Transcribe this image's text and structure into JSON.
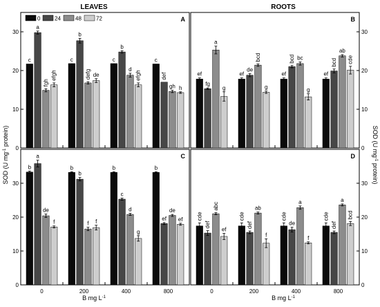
{
  "header": {
    "left": "LEAVES",
    "right": "ROOTS"
  },
  "axis_text": {
    "ylabel_left": "SOD (U mg",
    "ylabel_right": "SOD (U mg",
    "ylabel_sup": "-1",
    "ylabel_tail": " protein)",
    "xlabel_main": "B mg L",
    "xlabel_sup": "-1"
  },
  "legend": {
    "entries": [
      "0",
      "24",
      "48",
      "72"
    ]
  },
  "colors": {
    "series": [
      "#0a0a0a",
      "#474747",
      "#8c8c8c",
      "#cdcdcd"
    ],
    "frame": "#000000"
  },
  "chart_data": [
    {
      "panel": "A",
      "type": "bar",
      "ylim": [
        0,
        35
      ],
      "yticks": [
        0,
        10,
        20,
        30
      ],
      "categories": [
        "0",
        "200",
        "400",
        "800"
      ],
      "tick_labels_visible": false,
      "series": [
        {
          "name": "0",
          "values": [
            21.7,
            21.8,
            21.8,
            21.7
          ],
          "errors": [
            0,
            0,
            0,
            0
          ],
          "letters": [
            "c",
            "c",
            "c",
            "c"
          ]
        },
        {
          "name": "24",
          "values": [
            29.8,
            27.7,
            24.8,
            17.0
          ],
          "errors": [
            0.4,
            0.6,
            0.3,
            0
          ],
          "letters": [
            "a",
            "b",
            "b",
            "def"
          ]
        },
        {
          "name": "48",
          "values": [
            14.9,
            16.8,
            18.8,
            14.6
          ],
          "errors": [
            0.4,
            0.3,
            0.5,
            0.3
          ],
          "letters": [
            "fgh",
            "defg",
            "d",
            "gh"
          ]
        },
        {
          "name": "72",
          "values": [
            16.3,
            17.4,
            16.3,
            14.3
          ],
          "errors": [
            0.5,
            0.5,
            0.5,
            0.2
          ],
          "letters": [
            "efgh",
            "de",
            "efgh",
            "h"
          ]
        }
      ]
    },
    {
      "panel": "B",
      "type": "bar",
      "ylim": [
        0,
        35
      ],
      "yticks": [
        0,
        10,
        20,
        30
      ],
      "categories": [
        "0",
        "200",
        "400",
        "800"
      ],
      "tick_labels_visible": false,
      "series": [
        {
          "name": "0",
          "values": [
            17.8,
            17.8,
            17.8,
            17.8
          ],
          "errors": [
            0.3,
            0.3,
            0.3,
            0.3
          ],
          "letters": [
            "ef",
            "ef",
            "ef",
            "ef"
          ]
        },
        {
          "name": "24",
          "values": [
            15.3,
            18.8,
            21.0,
            19.9
          ],
          "errors": [
            0.2,
            0.4,
            0.3,
            0.5
          ],
          "letters": [
            "fg",
            "de",
            "bcd",
            "bcd"
          ]
        },
        {
          "name": "48",
          "values": [
            25.3,
            21.4,
            21.8,
            23.8
          ],
          "errors": [
            1.0,
            0.3,
            0.4,
            0.3
          ],
          "letters": [
            "a",
            "bcd",
            "bc",
            "ab"
          ]
        },
        {
          "name": "72",
          "values": [
            13.3,
            14.4,
            13.2,
            20.1
          ],
          "errors": [
            1.2,
            0.3,
            0.8,
            1.0
          ],
          "letters": [
            "g",
            "g",
            "g",
            "cde"
          ]
        }
      ]
    },
    {
      "panel": "C",
      "type": "bar",
      "ylim": [
        0,
        40
      ],
      "yticks": [
        0,
        10,
        20,
        30
      ],
      "categories": [
        "0",
        "200",
        "400",
        "800"
      ],
      "tick_labels_visible": true,
      "series": [
        {
          "name": "0",
          "values": [
            33.3,
            33.2,
            33.2,
            33.2
          ],
          "errors": [
            0.3,
            0.2,
            0.2,
            0.2
          ],
          "letters": [
            "b",
            "b",
            "b",
            "b"
          ]
        },
        {
          "name": "24",
          "values": [
            35.8,
            31.2,
            25.3,
            18.1
          ],
          "errors": [
            1.0,
            0.5,
            0.3,
            0.3
          ],
          "letters": [
            "a",
            "b",
            "c",
            "ef"
          ]
        },
        {
          "name": "48",
          "values": [
            20.4,
            16.5,
            20.8,
            20.5
          ],
          "errors": [
            0.5,
            0.5,
            0.3,
            0.3
          ],
          "letters": [
            "de",
            "f",
            "d",
            "de"
          ]
        },
        {
          "name": "72",
          "values": [
            17.1,
            16.9,
            13.7,
            17.9
          ],
          "errors": [
            0.3,
            0.7,
            0.8,
            0.3
          ],
          "letters": [
            "f",
            "f",
            "g",
            "ef"
          ]
        }
      ]
    },
    {
      "panel": "D",
      "type": "bar",
      "ylim": [
        0,
        40
      ],
      "yticks": [
        0,
        10,
        20,
        30
      ],
      "categories": [
        "0",
        "200",
        "400",
        "800"
      ],
      "tick_labels_visible": true,
      "series": [
        {
          "name": "0",
          "values": [
            17.4,
            17.4,
            17.4,
            17.4
          ],
          "errors": [
            0.9,
            0.9,
            0.9,
            0.9
          ],
          "letters": [
            "cde",
            "cde",
            "cde",
            "cde"
          ]
        },
        {
          "name": "24",
          "values": [
            15.3,
            15.5,
            16.3,
            15.5
          ],
          "errors": [
            0.7,
            0.4,
            0.7,
            0.4
          ],
          "letters": [
            "def",
            "def",
            "de",
            "def"
          ]
        },
        {
          "name": "48",
          "values": [
            21.0,
            21.2,
            22.8,
            23.6
          ],
          "errors": [
            0.3,
            0.3,
            0.5,
            0.3
          ],
          "letters": [
            "abc",
            "ab",
            "a",
            "a"
          ]
        },
        {
          "name": "72",
          "values": [
            14.3,
            12.3,
            12.4,
            18.1
          ],
          "errors": [
            0.9,
            1.3,
            0.3,
            0.6
          ],
          "letters": [
            "ef",
            "f",
            "f",
            "bcd"
          ]
        }
      ]
    }
  ]
}
